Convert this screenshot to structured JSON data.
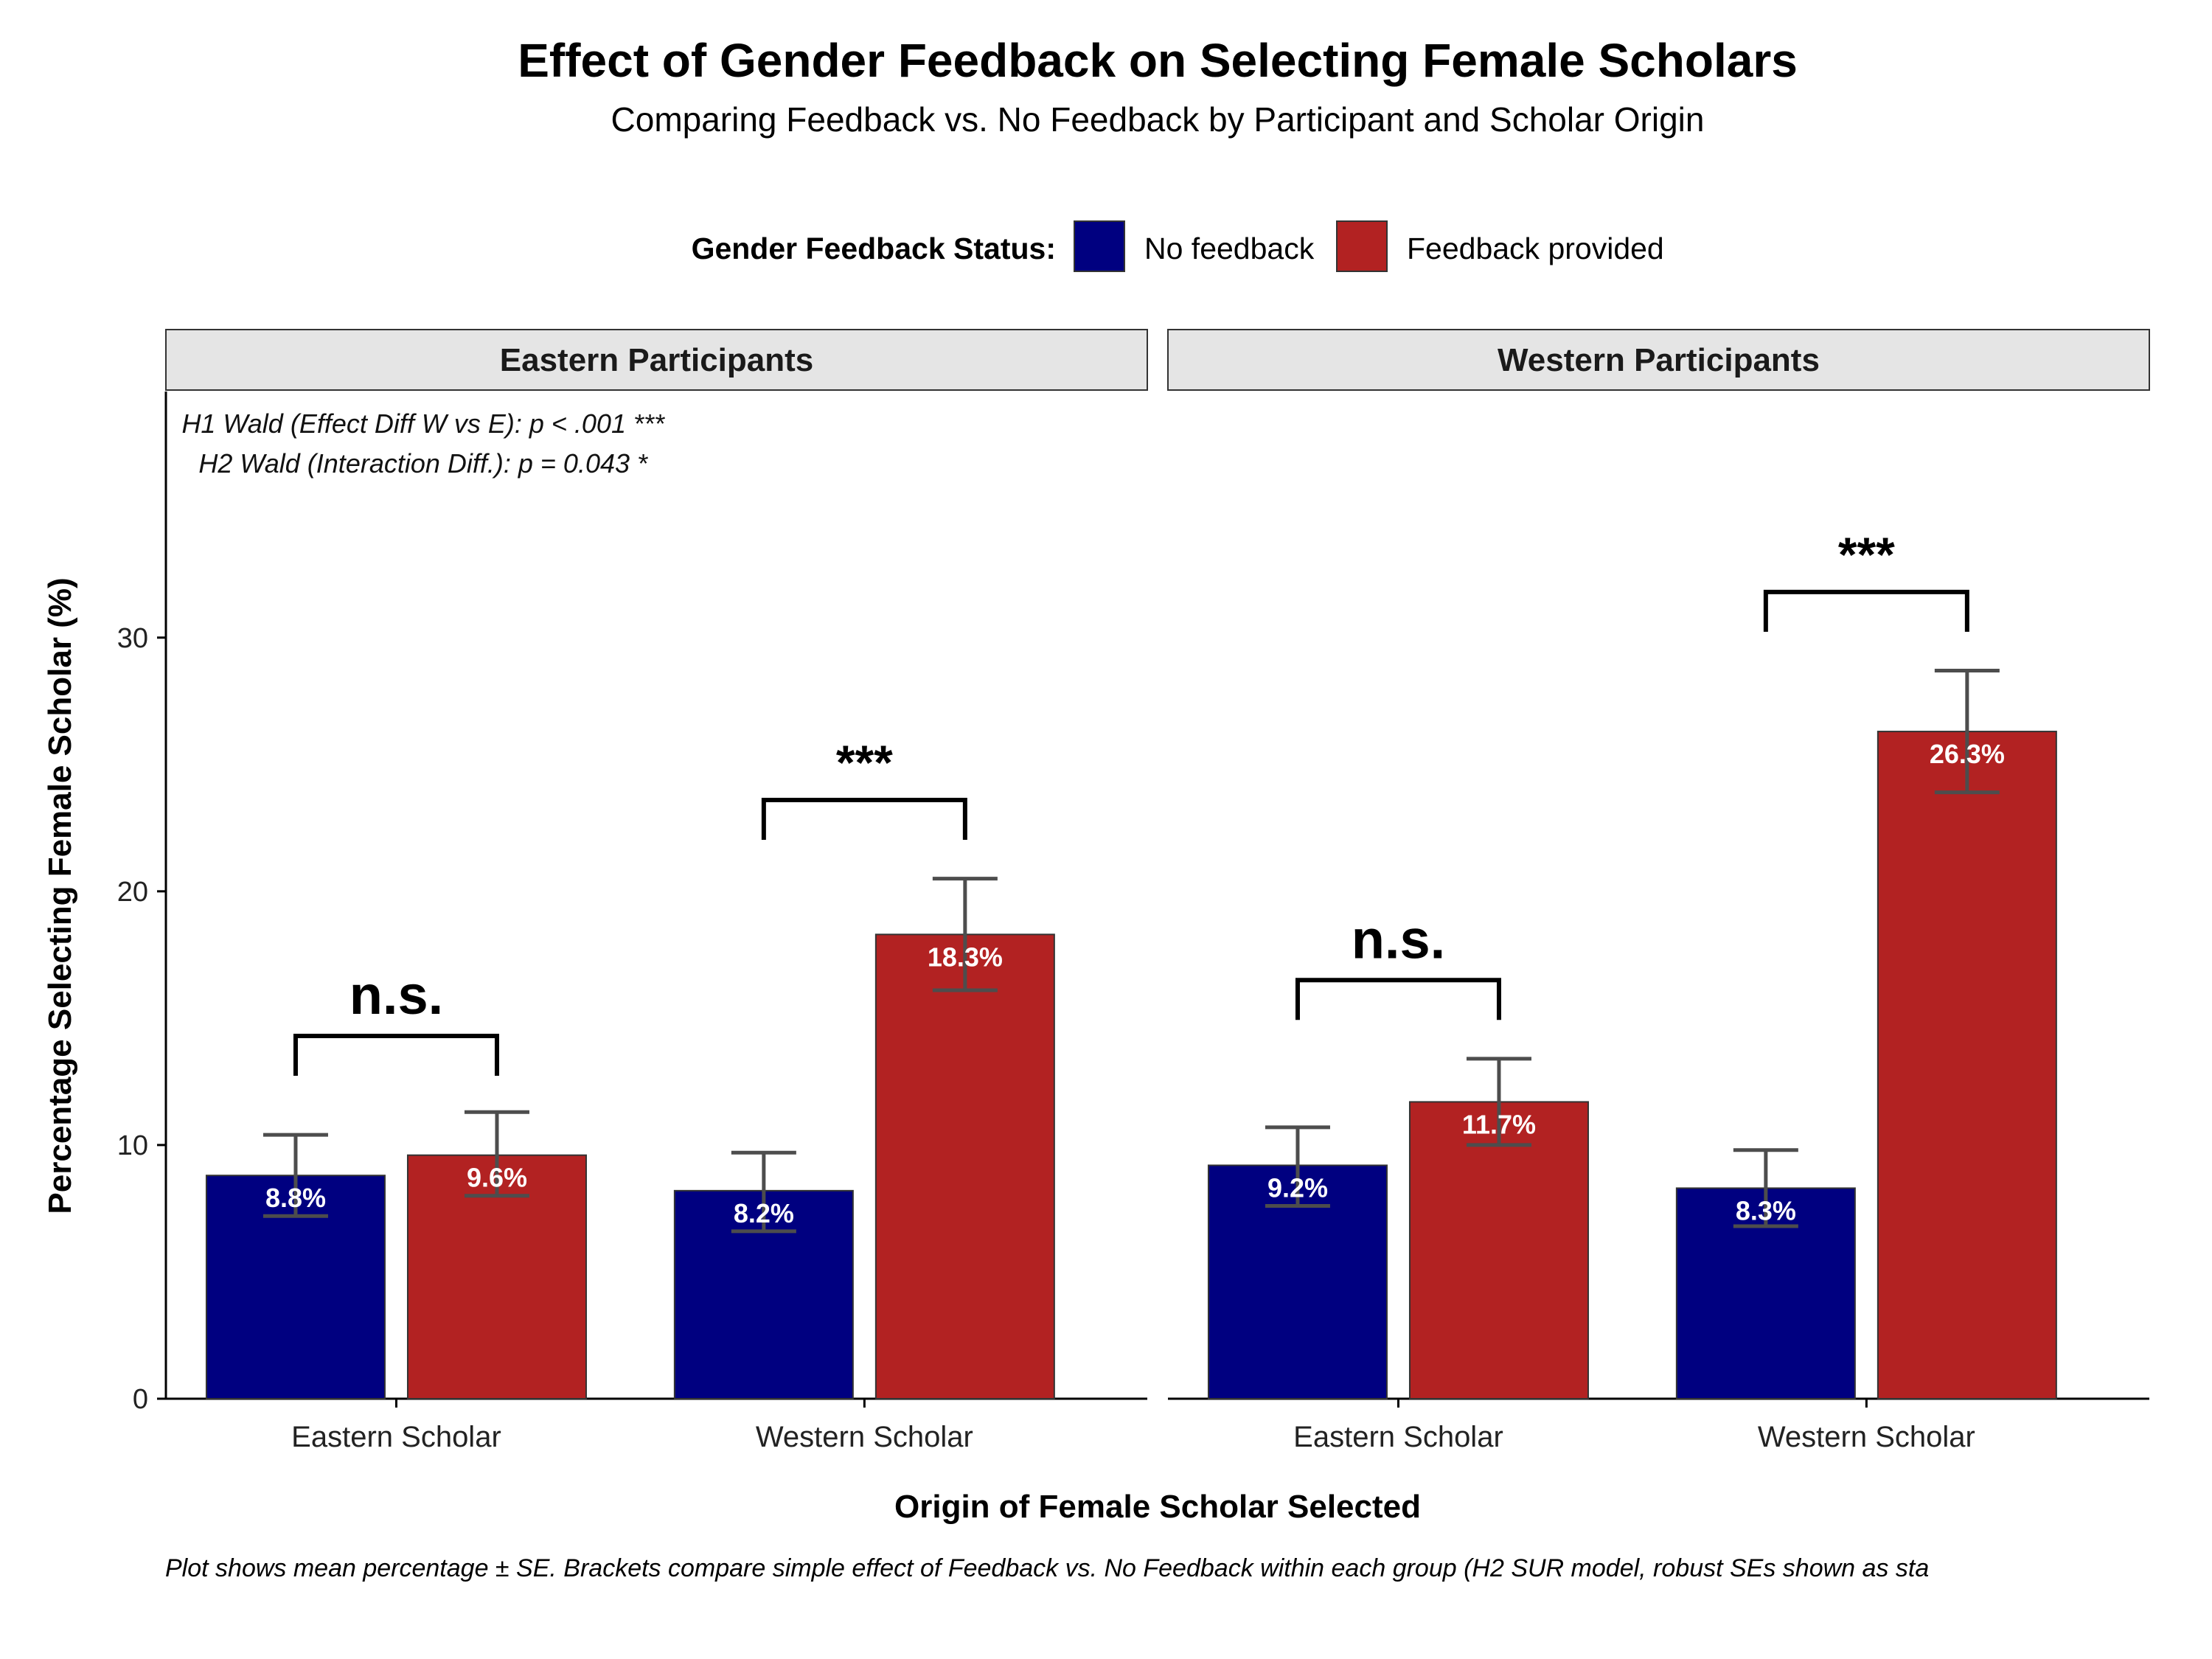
{
  "chart_data": {
    "type": "bar",
    "title": "Effect of Gender Feedback on Selecting Female Scholars",
    "subtitle": "Comparing Feedback vs. No Feedback by Participant and Scholar Origin",
    "xlabel": "Origin of Female Scholar Selected",
    "ylabel": "Percentage Selecting Female Scholar (%)",
    "caption": "Plot shows mean percentage ± SE. Brackets compare simple effect of Feedback vs. No Feedback within each group (H2 SUR model, robust SEs shown as sta",
    "ylim": [
      0,
      39.7
    ],
    "yticks": [
      "0",
      "10",
      "20",
      "30"
    ],
    "grid": false,
    "legend": {
      "title": "Gender Feedback Status:",
      "position": "top",
      "entries": [
        {
          "label": "No feedback",
          "color": "#000080"
        },
        {
          "label": "Feedback provided",
          "color": "#B22222"
        }
      ]
    },
    "series": [
      {
        "name": "No feedback",
        "color": "#000080"
      },
      {
        "name": "Feedback provided",
        "color": "#B22222"
      }
    ],
    "panels": [
      {
        "title": "Eastern Participants",
        "annotation_lines": [
          "H1 Wald (Effect Diff W vs E): p < .001 ***",
          "H2 Wald (Interaction Diff.): p = 0.043 *"
        ],
        "groups": [
          {
            "category": "Eastern Scholar",
            "values": [
              8.8,
              9.6
            ],
            "labels": [
              "8.8%",
              "9.6%"
            ],
            "se_low": [
              7.2,
              8.0
            ],
            "se_high": [
              10.4,
              11.3
            ],
            "significance": "n.s.",
            "bracket_y": 14.3
          },
          {
            "category": "Western Scholar",
            "values": [
              8.2,
              18.3
            ],
            "labels": [
              "8.2%",
              "18.3%"
            ],
            "se_low": [
              6.6,
              16.1
            ],
            "se_high": [
              9.7,
              20.5
            ],
            "significance": "***",
            "bracket_y": 23.6
          }
        ]
      },
      {
        "title": "Western Participants",
        "annotation_lines": [],
        "groups": [
          {
            "category": "Eastern Scholar",
            "values": [
              9.2,
              11.7
            ],
            "labels": [
              "9.2%",
              "11.7%"
            ],
            "se_low": [
              7.6,
              10.0
            ],
            "se_high": [
              10.7,
              13.4
            ],
            "significance": "n.s.",
            "bracket_y": 16.5
          },
          {
            "category": "Western Scholar",
            "values": [
              8.3,
              26.3
            ],
            "labels": [
              "8.3%",
              "26.3%"
            ],
            "se_low": [
              6.8,
              23.9
            ],
            "se_high": [
              9.8,
              28.7
            ],
            "significance": "***",
            "bracket_y": 31.8
          }
        ]
      }
    ]
  }
}
